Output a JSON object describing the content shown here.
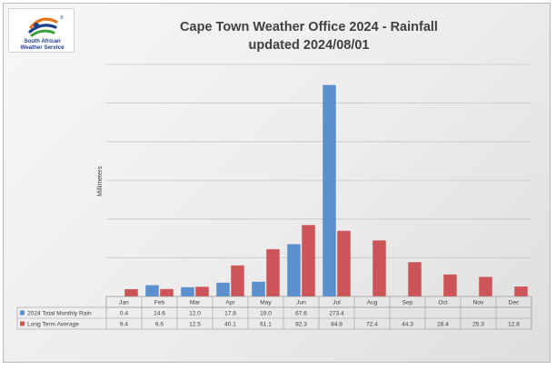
{
  "logo": {
    "name_line1": "South African",
    "name_line2": "Weather Service",
    "registered_mark": "®",
    "colors": {
      "blue": "#1d3f8f",
      "orange": "#e8731d",
      "green": "#3aa13b"
    }
  },
  "chart_data": {
    "type": "bar",
    "title_line1": "Cape Town Weather Office 2024 - Rainfall",
    "title_line2": "updated 2024/08/01",
    "ylabel": "Millimeters",
    "xlabel": "",
    "ylim": [
      0,
      300
    ],
    "ytick_step": 50,
    "grid": true,
    "legend": "table",
    "categories": [
      "Jan",
      "Feb",
      "Mar",
      "Apr",
      "May",
      "Jun",
      "Jul",
      "Aug",
      "Sep",
      "Oct",
      "Nov",
      "Dec"
    ],
    "series": [
      {
        "name": "2024 Total Monthly Rain",
        "color": "#5b8fce",
        "values": [
          0.4,
          14.6,
          12.0,
          17.8,
          19.0,
          67.6,
          273.4,
          null,
          null,
          null,
          null,
          null
        ],
        "labels": [
          "0.4",
          "14.6",
          "12.0",
          "17.8",
          "19.0",
          "67.6",
          "273.4",
          "",
          "",
          "",
          "",
          ""
        ]
      },
      {
        "name": "Long Term Average",
        "color": "#cd5559",
        "values": [
          9.4,
          9.6,
          12.5,
          40.1,
          61.1,
          92.3,
          84.8,
          72.4,
          44.3,
          28.4,
          25.3,
          12.8
        ],
        "labels": [
          "9.4",
          "9.6",
          "12.5",
          "40.1",
          "61.1",
          "92.3",
          "84.8",
          "72.4",
          "44.3",
          "28.4",
          "25.3",
          "12.8"
        ]
      }
    ]
  }
}
